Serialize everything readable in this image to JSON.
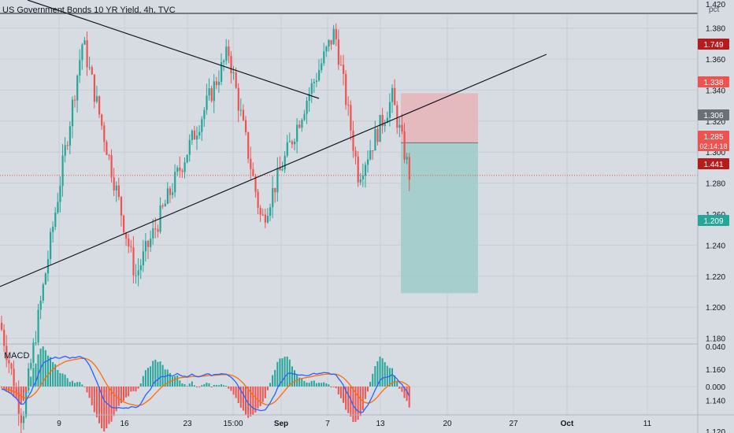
{
  "header": {
    "title": "US Government Bonds 10 YR Yield, 4h, TVC",
    "unit": "pct"
  },
  "panes": {
    "macd_label": "MACD"
  },
  "colors": {
    "background": "#d7dbe2",
    "grid": "#c8ccd4",
    "up": "#26a69a",
    "down": "#ef5350",
    "macd_line": "#2962ff",
    "signal_line": "#ff6d00",
    "trendline": "#131722",
    "risk_zone": "#e8b4b8",
    "reward_zone": "#9ccbc8",
    "axis_text": "#131722"
  },
  "badges": [
    {
      "label": "1.749",
      "color": "#b71c1c"
    },
    {
      "label": "1.338",
      "color": "#ef5350"
    },
    {
      "label": "1.306",
      "color": "#6b6f78"
    },
    {
      "label": "1.285",
      "label2": "02:14:18",
      "color": "#ef5350"
    },
    {
      "label": "1.441",
      "color": "#b71c1c"
    },
    {
      "label": "1.209",
      "color": "#26a69a"
    }
  ],
  "chart_data": {
    "type": "candlestick",
    "price_axis": {
      "ticks": [
        "1.420",
        "1.380",
        "1.360",
        "1.340",
        "1.320",
        "1.300",
        "1.280",
        "1.260",
        "1.240",
        "1.220",
        "1.200",
        "1.180",
        "1.160",
        "1.140",
        "1.120"
      ]
    },
    "macd_axis": {
      "ticks": [
        "0.040",
        "0.000"
      ]
    },
    "x_axis": {
      "ticks": [
        "9",
        "16",
        "23",
        "15:00",
        "Sep",
        "7",
        "13",
        "20",
        "27",
        "Oct",
        "11"
      ]
    },
    "key_points": [
      {
        "x": "start",
        "y": 1.19
      },
      {
        "x": "low",
        "y": 1.128
      },
      {
        "x": "9-10",
        "y": 1.372
      },
      {
        "x": "16",
        "y": 1.22
      },
      {
        "x": "24",
        "y": 1.365
      },
      {
        "x": "31",
        "y": 1.255
      },
      {
        "x": "3",
        "y": 1.335
      },
      {
        "x": "7",
        "y": 1.378
      },
      {
        "x": "10",
        "y": 1.285
      },
      {
        "x": "13",
        "y": 1.335
      },
      {
        "x": "14",
        "y": 1.285
      }
    ],
    "position": {
      "entry": 1.306,
      "stop": 1.338,
      "target": 1.209
    }
  }
}
